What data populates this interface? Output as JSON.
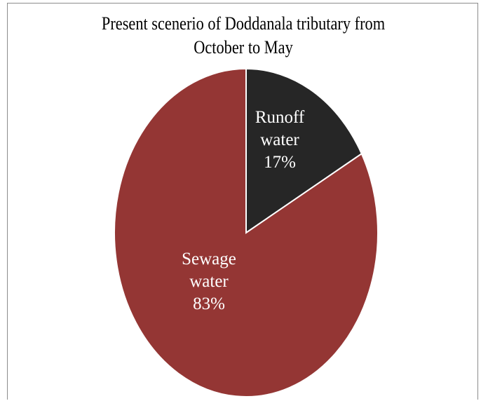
{
  "chart_data": {
    "type": "pie",
    "title_lines": [
      "Present scenerio of Doddanala tributary from",
      "October to May"
    ],
    "slices": [
      {
        "label_lines": [
          "Runoff",
          "water"
        ],
        "value": 17,
        "value_label": "17%",
        "color": "#262626"
      },
      {
        "label_lines": [
          "Sewage",
          "water"
        ],
        "value": 83,
        "value_label": "83%",
        "color": "#943634"
      }
    ],
    "start_angle_deg": 0,
    "direction": "clockwise",
    "legend": "none",
    "slice_border_color": "#ffffff"
  }
}
